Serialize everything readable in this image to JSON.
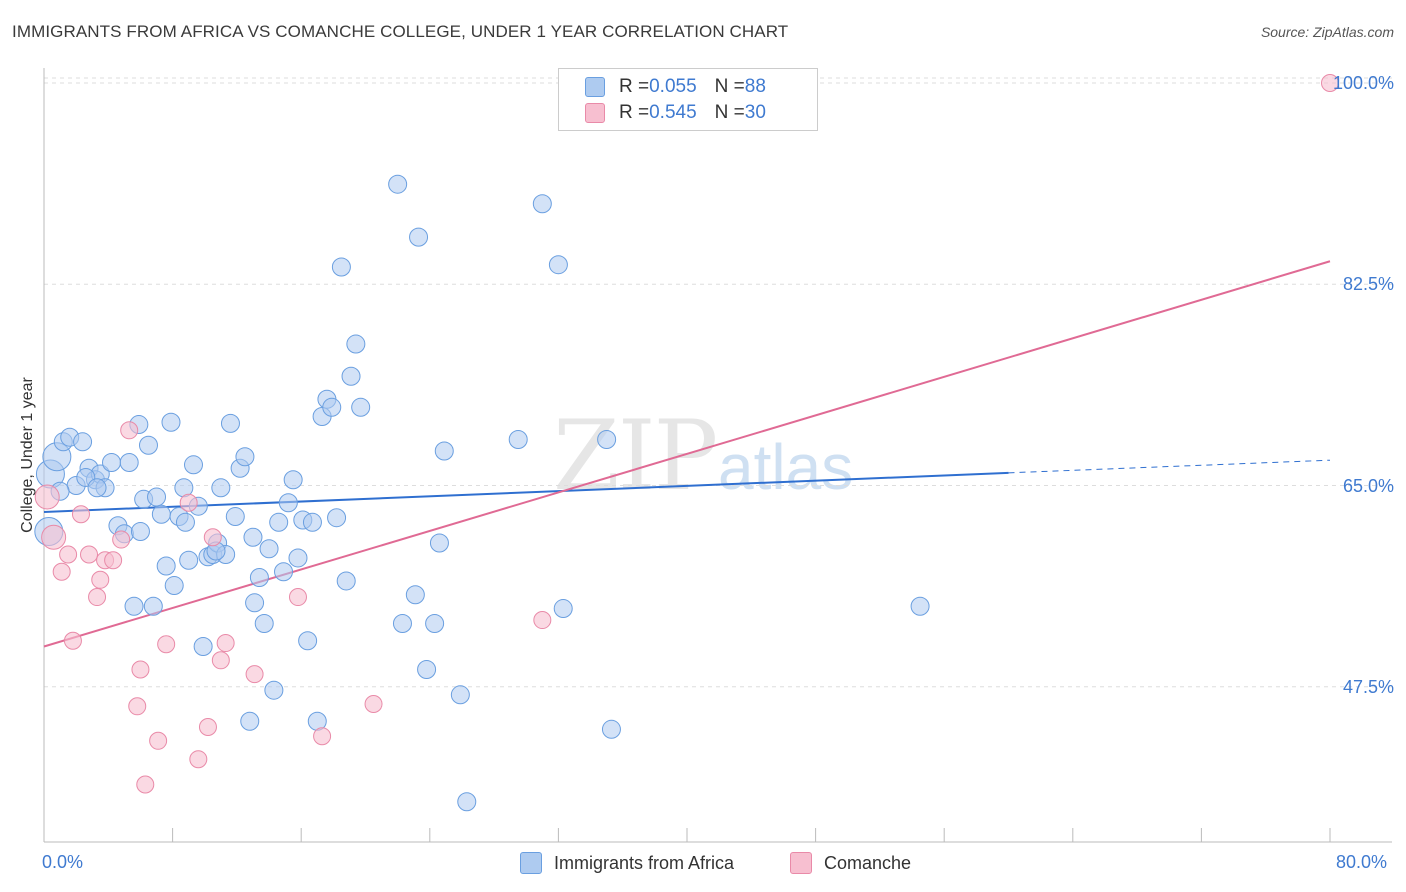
{
  "header": {
    "title": "IMMIGRANTS FROM AFRICA VS COMANCHE COLLEGE, UNDER 1 YEAR CORRELATION CHART",
    "source": "Source: ZipAtlas.com"
  },
  "watermark": {
    "zip": "ZIP",
    "atlas": "atlas"
  },
  "legend": {
    "rows": [
      {
        "r_label": "R = ",
        "r_value": "0.055",
        "n_label": "N = ",
        "n_value": "88",
        "color": "#aecbf0"
      },
      {
        "r_label": "R = ",
        "r_value": "0.545",
        "n_label": "N = ",
        "n_value": "30",
        "color": "#f7bfd0"
      }
    ]
  },
  "bottom_legend": {
    "series1": "Immigrants from Africa",
    "series2": "Comanche"
  },
  "colors": {
    "blue_fill": "#aecbf0",
    "blue_stroke": "#6a9fe0",
    "blue_line": "#2f6fd0",
    "pink_fill": "#f7bfd0",
    "pink_stroke": "#e98aa8",
    "pink_line": "#e06a94",
    "grid": "#dddddd",
    "axis_text": "#3f7ad0"
  },
  "chart_data": {
    "type": "scatter",
    "title": "IMMIGRANTS FROM AFRICA VS COMANCHE COLLEGE, UNDER 1 YEAR CORRELATION CHART",
    "xlabel": "",
    "ylabel": "College, Under 1 year",
    "xlim": [
      0,
      80
    ],
    "ylim": [
      34,
      102
    ],
    "x_tick_labels": [
      "0.0%",
      "80.0%"
    ],
    "y_tick_labels": [
      "100.0%",
      "82.5%",
      "65.0%",
      "47.5%"
    ],
    "y_ticks": [
      100.0,
      82.5,
      65.0,
      47.5
    ],
    "grid": true,
    "legend_position": "top-center",
    "series": [
      {
        "name": "Immigrants from Africa",
        "r": 0.055,
        "n": 88,
        "trend": {
          "x0": 0,
          "y0": 62.7,
          "x1": 60,
          "y1": 66.1,
          "x_dash_end": 80,
          "y_dash_end": 67.2
        },
        "points": [
          [
            0.3,
            61.0
          ],
          [
            0.4,
            66.0
          ],
          [
            0.8,
            67.5
          ],
          [
            1.2,
            68.8
          ],
          [
            1.6,
            69.2
          ],
          [
            2.0,
            65.0
          ],
          [
            2.4,
            68.8
          ],
          [
            2.8,
            66.5
          ],
          [
            3.2,
            65.5
          ],
          [
            3.5,
            66.0
          ],
          [
            3.8,
            64.8
          ],
          [
            4.2,
            67.0
          ],
          [
            4.6,
            61.5
          ],
          [
            5.0,
            60.8
          ],
          [
            5.3,
            67.0
          ],
          [
            5.6,
            54.5
          ],
          [
            5.9,
            70.3
          ],
          [
            6.2,
            63.8
          ],
          [
            6.5,
            68.5
          ],
          [
            6.8,
            54.5
          ],
          [
            7.0,
            64.0
          ],
          [
            7.3,
            62.5
          ],
          [
            7.6,
            58.0
          ],
          [
            7.9,
            70.5
          ],
          [
            8.1,
            56.3
          ],
          [
            8.4,
            62.3
          ],
          [
            8.7,
            64.8
          ],
          [
            9.0,
            58.5
          ],
          [
            9.3,
            66.8
          ],
          [
            9.6,
            63.2
          ],
          [
            9.9,
            51.0
          ],
          [
            10.2,
            58.8
          ],
          [
            10.5,
            59.0
          ],
          [
            10.8,
            60.0
          ],
          [
            11.0,
            64.8
          ],
          [
            11.3,
            59.0
          ],
          [
            11.6,
            70.4
          ],
          [
            11.9,
            62.3
          ],
          [
            12.2,
            66.5
          ],
          [
            12.5,
            67.5
          ],
          [
            12.8,
            44.5
          ],
          [
            13.1,
            54.8
          ],
          [
            13.4,
            57.0
          ],
          [
            13.7,
            53.0
          ],
          [
            14.0,
            59.5
          ],
          [
            14.3,
            47.2
          ],
          [
            14.6,
            61.8
          ],
          [
            14.9,
            57.5
          ],
          [
            15.2,
            63.5
          ],
          [
            15.5,
            65.5
          ],
          [
            15.8,
            58.7
          ],
          [
            16.1,
            62.0
          ],
          [
            16.4,
            51.5
          ],
          [
            16.7,
            61.8
          ],
          [
            17.0,
            44.5
          ],
          [
            17.3,
            71.0
          ],
          [
            17.6,
            72.5
          ],
          [
            17.9,
            71.8
          ],
          [
            18.2,
            62.2
          ],
          [
            18.5,
            84.0
          ],
          [
            18.8,
            56.7
          ],
          [
            19.1,
            74.5
          ],
          [
            19.4,
            77.3
          ],
          [
            19.7,
            71.8
          ],
          [
            22.0,
            91.2
          ],
          [
            22.3,
            53.0
          ],
          [
            23.1,
            55.5
          ],
          [
            23.3,
            86.6
          ],
          [
            23.8,
            49.0
          ],
          [
            24.3,
            53.0
          ],
          [
            24.6,
            60.0
          ],
          [
            24.9,
            68.0
          ],
          [
            25.9,
            46.8
          ],
          [
            26.3,
            37.5
          ],
          [
            29.5,
            69.0
          ],
          [
            31.0,
            89.5
          ],
          [
            32.0,
            84.2
          ],
          [
            32.3,
            54.3
          ],
          [
            35.0,
            69.0
          ],
          [
            35.3,
            43.8
          ],
          [
            54.5,
            54.5
          ],
          [
            1.0,
            64.5
          ],
          [
            2.6,
            65.7
          ],
          [
            3.3,
            64.8
          ],
          [
            6.0,
            61.0
          ],
          [
            8.8,
            61.8
          ],
          [
            10.7,
            59.3
          ],
          [
            13.0,
            60.5
          ]
        ]
      },
      {
        "name": "Comanche",
        "r": 0.545,
        "n": 30,
        "trend": {
          "x0": 0,
          "y0": 51.0,
          "x1": 80,
          "y1": 84.5
        },
        "points": [
          [
            0.2,
            64.0
          ],
          [
            0.6,
            60.5
          ],
          [
            1.1,
            57.5
          ],
          [
            1.5,
            59.0
          ],
          [
            1.8,
            51.5
          ],
          [
            2.3,
            62.5
          ],
          [
            2.8,
            59.0
          ],
          [
            3.3,
            55.3
          ],
          [
            3.5,
            56.8
          ],
          [
            3.8,
            58.5
          ],
          [
            4.3,
            58.5
          ],
          [
            4.8,
            60.3
          ],
          [
            5.3,
            69.8
          ],
          [
            5.8,
            45.8
          ],
          [
            6.0,
            49.0
          ],
          [
            6.3,
            39.0
          ],
          [
            7.1,
            42.8
          ],
          [
            7.6,
            51.2
          ],
          [
            9.0,
            63.5
          ],
          [
            9.6,
            41.2
          ],
          [
            10.2,
            44.0
          ],
          [
            10.5,
            60.5
          ],
          [
            11.0,
            49.8
          ],
          [
            11.3,
            51.3
          ],
          [
            13.1,
            48.6
          ],
          [
            15.8,
            55.3
          ],
          [
            17.3,
            43.2
          ],
          [
            20.5,
            46.0
          ],
          [
            31.0,
            53.3
          ],
          [
            80.0,
            100.0
          ]
        ]
      }
    ]
  }
}
